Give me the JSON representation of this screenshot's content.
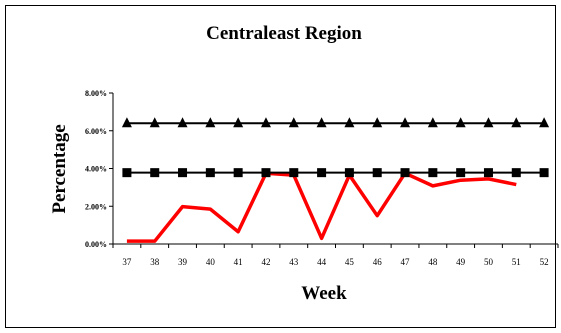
{
  "chart_data": {
    "type": "line",
    "title": "Centraleast Region",
    "xlabel": "Week",
    "ylabel": "Percentage",
    "categories": [
      "37",
      "38",
      "39",
      "40",
      "41",
      "42",
      "43",
      "44",
      "45",
      "46",
      "47",
      "48",
      "49",
      "50",
      "51",
      "52"
    ],
    "ylim": [
      0,
      0.08
    ],
    "yticks": [
      "0.00%",
      "2.00%",
      "4.00%",
      "6.00%",
      "8.00%"
    ],
    "grid": false,
    "legend": "none",
    "series": [
      {
        "color": "#ff0000",
        "marker": "none",
        "values": [
          0.0015,
          0.0015,
          0.0198,
          0.0185,
          0.0065,
          0.0375,
          0.0365,
          0.003,
          0.0365,
          0.015,
          0.0375,
          0.0308,
          0.0338,
          0.0345,
          0.0315,
          null
        ]
      },
      {
        "color": "#000000",
        "marker": "square",
        "values": [
          0.0378,
          0.0378,
          0.0378,
          0.0378,
          0.0378,
          0.0378,
          0.0378,
          0.0378,
          0.0378,
          0.0378,
          0.0378,
          0.0378,
          0.0378,
          0.0378,
          0.0378,
          0.0378
        ]
      },
      {
        "color": "#000000",
        "marker": "triangle",
        "values": [
          0.064,
          0.064,
          0.064,
          0.064,
          0.064,
          0.064,
          0.064,
          0.064,
          0.064,
          0.064,
          0.064,
          0.064,
          0.064,
          0.064,
          0.064,
          0.064
        ]
      }
    ]
  }
}
